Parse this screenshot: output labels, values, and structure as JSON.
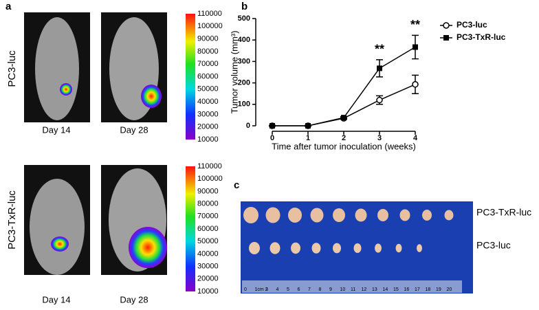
{
  "panels": {
    "a": "a",
    "b": "b",
    "c": "c"
  },
  "imaging": {
    "rows": [
      "PC3-luc",
      "PC3-TxR-luc"
    ],
    "days": [
      "Day 14",
      "Day 28"
    ],
    "colorbar_ticks": [
      110000,
      100000,
      90000,
      80000,
      70000,
      60000,
      50000,
      40000,
      30000,
      20000,
      10000
    ]
  },
  "chart_data": {
    "type": "line",
    "xlabel": "Time after tumor inoculation (weeks)",
    "ylabel": "Tumor volume (mm³)",
    "x": [
      0,
      1,
      2,
      3,
      4
    ],
    "xlim": [
      0,
      4
    ],
    "xticks": [
      0,
      1,
      2,
      3,
      4
    ],
    "ylim": [
      0,
      500
    ],
    "yticks": [
      0,
      100,
      200,
      300,
      400,
      500
    ],
    "legend": "top-right",
    "series": [
      {
        "name": "PC3-luc",
        "color": "#000000",
        "marker": "circle-open",
        "values": [
          0,
          0,
          35,
          120,
          193
        ],
        "errors": [
          0,
          0,
          5,
          20,
          43
        ]
      },
      {
        "name": "PC3-TxR-luc",
        "color": "#000000",
        "marker": "square",
        "values": [
          0,
          0,
          38,
          268,
          367
        ],
        "errors": [
          0,
          0,
          5,
          40,
          55
        ]
      }
    ],
    "annotations": [
      {
        "text": "**",
        "x": 3,
        "series": 1
      },
      {
        "text": "**",
        "x": 4,
        "series": 1
      }
    ]
  },
  "photo": {
    "rows": [
      "PC3-TxR-luc",
      "PC3-luc"
    ],
    "ruler": [
      "0",
      "1cm 2",
      "3",
      "4",
      "5",
      "6",
      "7",
      "8",
      "9",
      "10",
      "11",
      "12",
      "13",
      "14",
      "15",
      "16",
      "17",
      "18",
      "19",
      "20"
    ]
  }
}
